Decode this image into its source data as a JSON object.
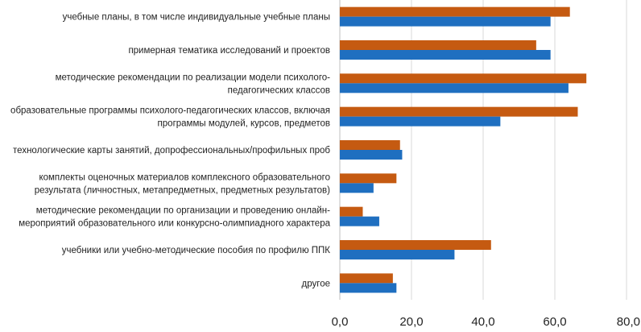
{
  "chart_data": {
    "type": "bar",
    "orientation": "horizontal",
    "title": "",
    "xlabel": "",
    "ylabel": "",
    "xlim": [
      0,
      80
    ],
    "x_ticks": [
      "0,0",
      "20,0",
      "40,0",
      "60,0",
      "80,0"
    ],
    "grid": "vertical",
    "legend": "none",
    "categories": [
      [
        "учебные планы, в том числе индивидуальные учебные планы"
      ],
      [
        "примерная тематика исследований и проектов"
      ],
      [
        "методические рекомендации по реализации модели психолого-",
        "педагогических классов"
      ],
      [
        "образовательные программы психолого-педагогических классов, включая",
        "программы модулей, курсов, предметов"
      ],
      [
        "технологические карты занятий, допрофессиональных/профильных проб"
      ],
      [
        "комплекты оценочных материалов комплексного образовательного",
        "результата (личностных, метапредметных, предметных результатов)"
      ],
      [
        "методические рекомендации по организации и проведению онлайн-",
        "мероприятий образовательного или конкурсно-олимпиадного характера"
      ],
      [
        "учебники или  учебно-методические пособия по профилю ППК"
      ],
      [
        "другое"
      ]
    ],
    "series": [
      {
        "color": "#c55a11",
        "values": [
          64.2,
          54.8,
          68.8,
          66.4,
          16.8,
          15.8,
          6.4,
          42.2,
          14.8
        ]
      },
      {
        "color": "#1f6fc0",
        "values": [
          58.8,
          58.8,
          63.8,
          44.8,
          17.4,
          9.4,
          11.0,
          32.0,
          15.8
        ]
      }
    ]
  }
}
